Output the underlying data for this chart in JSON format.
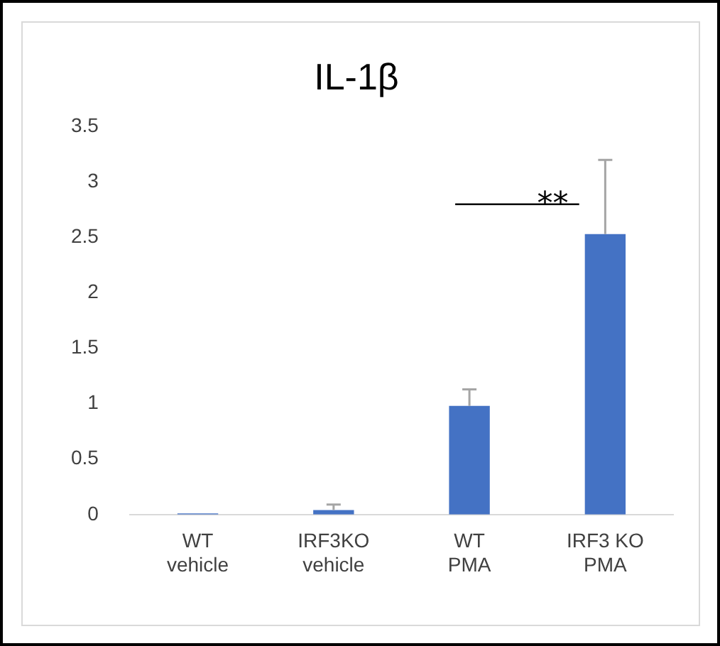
{
  "chart_data": {
    "type": "bar",
    "title": "IL-1β",
    "categories": [
      "WT\nvehicle",
      "IRF3KO\nvehicle",
      "WT\nPMA",
      "IRF3 KO\nPMA"
    ],
    "values": [
      0.01,
      0.04,
      0.98,
      2.53
    ],
    "errors": [
      null,
      [
        0.04,
        0.09
      ],
      [
        0.98,
        1.13
      ],
      [
        2.53,
        3.2
      ]
    ],
    "color": "#4472c4",
    "ylim": [
      0,
      3.5
    ],
    "yticks": [
      0,
      0.5,
      1,
      1.5,
      2,
      2.5,
      3,
      3.5
    ],
    "grid": false,
    "legend": false,
    "annotations": [
      "**"
    ]
  }
}
